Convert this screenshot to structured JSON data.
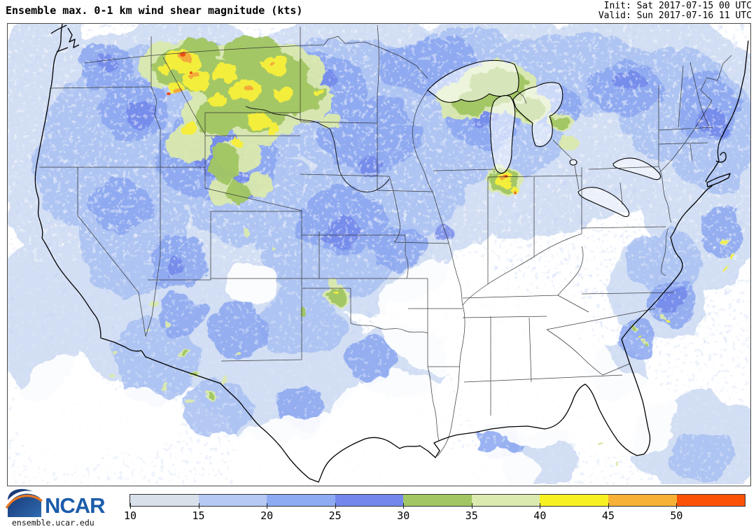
{
  "header": {
    "title": "Ensemble max. 0-1 km wind shear magnitude (kts)",
    "init": "Init: Sat 2017-07-15 00 UTC",
    "valid": "Valid: Sun 2017-07-16 11 UTC"
  },
  "map": {
    "region": "Continental United States",
    "field": "Ensemble maximum 0-1 km wind shear magnitude",
    "units": "kts",
    "background_meaning": "white = below 10 kts",
    "high_shear_hotspots": [
      "Montana and western North Dakota (yellow/orange, 40-50+ kts)",
      "northern Indiana near southern Lake Michigan (yellow/orange)",
      "upper Michigan / Ontario near Lake Superior (30-40 kts)",
      "Oklahoma panhandle vicinity (30-35 kts)"
    ]
  },
  "legend": {
    "units": "kts",
    "min": 10,
    "interval": 5,
    "tick_labels": [
      "10",
      "15",
      "20",
      "25",
      "30",
      "35",
      "40",
      "45",
      "50"
    ],
    "segment_colors": [
      "#d8e0ea",
      "#b4c9f3",
      "#8cabf3",
      "#7487ec",
      "#a2c663",
      "#dbeaae",
      "#f8f122",
      "#f6b136",
      "#fc5207"
    ]
  },
  "branding": {
    "org": "NCAR",
    "url": "ensemble.ucar.edu",
    "logo_navy_dark": "#17316f",
    "logo_navy_light": "#2e6cb0",
    "logo_text_blue": "#1b5caa",
    "logo_orange": "#e87722"
  }
}
